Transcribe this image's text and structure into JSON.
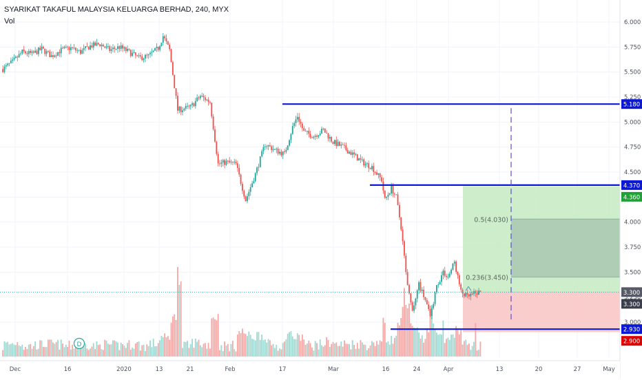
{
  "header": {
    "symbol_title": "SYARIKAT TAKAFUL MALAYSIA KELUARGA BERHAD, 240, MYX",
    "volume_label": "Vol"
  },
  "colors": {
    "up": "#26a69a",
    "down": "#ef5350",
    "vol_up": "#9fd9d2",
    "vol_down": "#f5a8a6",
    "level_line": "#0b19d6",
    "target_zone": "#c9ebc4",
    "stop_zone": "#f9c8c8",
    "fib_zone": "#a9c7b2",
    "price_line": "#26a69a",
    "badge_green": "#21a038",
    "badge_red": "#e00000",
    "badge_gray": "#555a66"
  },
  "chart_data": {
    "type": "candlestick",
    "title": "SYARIKAT TAKAFUL MALAYSIA KELUARGA BERHAD, 240, MYX",
    "timeframe": "240",
    "x_tick_labels": [
      "Dec",
      "16",
      "2020",
      "13",
      "21",
      "Feb",
      "17",
      "Mar",
      "16",
      "24",
      "Apr",
      "13",
      "20",
      "27",
      "May"
    ],
    "y_tick_labels": [
      "6.000",
      "5.750",
      "5.500",
      "5.250",
      "5.000",
      "4.750",
      "4.500",
      "4.250",
      "4.000",
      "3.750",
      "3.500",
      "3.250",
      "3.000"
    ],
    "ylim": [
      2.8,
      6.15
    ],
    "price_path": [
      [
        0,
        5.53
      ],
      [
        6,
        5.6
      ],
      [
        12,
        5.7
      ],
      [
        18,
        5.68
      ],
      [
        24,
        5.73
      ],
      [
        30,
        5.66
      ],
      [
        36,
        5.72
      ],
      [
        42,
        5.74
      ],
      [
        48,
        5.7
      ],
      [
        54,
        5.76
      ],
      [
        60,
        5.78
      ],
      [
        66,
        5.72
      ],
      [
        72,
        5.75
      ],
      [
        78,
        5.7
      ],
      [
        84,
        5.64
      ],
      [
        90,
        5.66
      ],
      [
        96,
        5.74
      ],
      [
        99,
        5.86
      ],
      [
        103,
        5.72
      ],
      [
        108,
        5.12
      ],
      [
        116,
        5.15
      ],
      [
        122,
        5.26
      ],
      [
        128,
        5.2
      ],
      [
        133,
        4.58
      ],
      [
        138,
        4.6
      ],
      [
        144,
        4.58
      ],
      [
        150,
        4.22
      ],
      [
        156,
        4.48
      ],
      [
        162,
        4.78
      ],
      [
        168,
        4.72
      ],
      [
        174,
        4.68
      ],
      [
        179,
        4.95
      ],
      [
        182,
        5.06
      ],
      [
        186,
        4.9
      ],
      [
        192,
        4.86
      ],
      [
        198,
        4.92
      ],
      [
        204,
        4.8
      ],
      [
        210,
        4.75
      ],
      [
        216,
        4.68
      ],
      [
        222,
        4.6
      ],
      [
        228,
        4.55
      ],
      [
        234,
        4.42
      ],
      [
        236,
        4.22
      ],
      [
        240,
        4.34
      ],
      [
        243,
        4.25
      ],
      [
        246,
        3.95
      ],
      [
        250,
        3.35
      ],
      [
        253,
        3.1
      ],
      [
        257,
        3.38
      ],
      [
        261,
        3.22
      ],
      [
        264,
        3.05
      ],
      [
        268,
        3.36
      ],
      [
        272,
        3.5
      ],
      [
        275,
        3.45
      ],
      [
        279,
        3.6
      ],
      [
        283,
        3.3
      ],
      [
        287,
        3.25
      ],
      [
        291,
        3.28
      ],
      [
        295,
        3.3
      ]
    ],
    "candle_count": 296,
    "volume": {
      "description": "per-candle volume bars, colored by candle direction",
      "notable_spikes": [
        {
          "x_label": "13",
          "note": "largest spike during January gap down"
        },
        {
          "x_label": "16",
          "note": "spike during March sell-off"
        }
      ]
    },
    "horizontal_levels": [
      5.18,
      4.37,
      2.93
    ],
    "position": {
      "entry": 3.3,
      "target": 4.36,
      "stop": 2.9
    },
    "fibonacci": [
      {
        "label": "0.5(4.030)",
        "value": 4.03
      },
      {
        "label": "0.236(3.450)",
        "value": 3.45
      }
    ],
    "event_marker": {
      "label": "D",
      "x_label": "16"
    },
    "price_badges": [
      {
        "label": "5.180",
        "value": 5.18,
        "style": "level"
      },
      {
        "label": "4.370",
        "value": 4.37,
        "style": "level"
      },
      {
        "label": "4.360",
        "value": 4.36,
        "style": "target"
      },
      {
        "label": "3.300",
        "value": 3.3,
        "style": "last"
      },
      {
        "label": "3.300",
        "value": 3.3,
        "style": "entry"
      },
      {
        "label": "2.930",
        "value": 2.93,
        "style": "level"
      },
      {
        "label": "2.900",
        "value": 2.9,
        "style": "stop"
      }
    ]
  }
}
